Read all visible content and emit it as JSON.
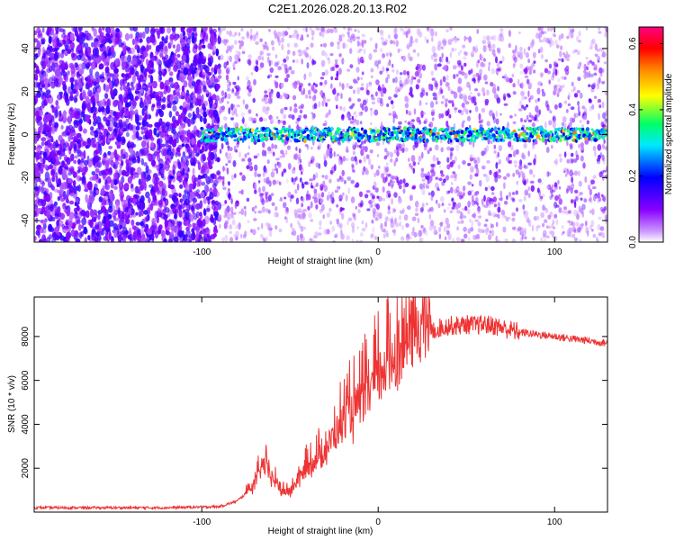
{
  "title": "C2E1.2026.028.20.13.R02",
  "chart_data": [
    {
      "type": "heatmap",
      "xlabel": "Height of straight line (km)",
      "ylabel": "Frequency (Hz)",
      "xlim": [
        -195,
        130
      ],
      "ylim": [
        -50,
        50
      ],
      "x_ticks": [
        -100,
        0,
        100
      ],
      "y_ticks": [
        -40,
        -20,
        0,
        20,
        40
      ],
      "colorbar": {
        "label": "Normalized spectral amplitude",
        "range": [
          0.0,
          0.65
        ],
        "ticks": [
          "0.0",
          "0.2",
          "0.4",
          "0.6"
        ],
        "colormap": [
          "#ffffff",
          "#8800ff",
          "#0000ff",
          "#00e8ff",
          "#00ff66",
          "#ffff00",
          "#ff8800",
          "#ff0000",
          "#ff0080"
        ]
      },
      "features": {
        "noise_fill_x_range": [
          -195,
          -90
        ],
        "sparse_noise_x_range": [
          -90,
          130
        ],
        "central_line_frequency": 0,
        "central_line_x_range": [
          -100,
          130
        ],
        "central_line_typical_amplitude": 0.28,
        "central_line_peak_amplitude": 0.55
      }
    },
    {
      "type": "line",
      "xlabel": "Height of straight line (km)",
      "ylabel": "SNR (10 * v/v)",
      "xlim": [
        -195,
        130
      ],
      "ylim": [
        0,
        9800
      ],
      "x_ticks": [
        -100,
        0,
        100
      ],
      "y_ticks": [
        2000,
        4000,
        6000,
        8000
      ],
      "color": "#ee3333",
      "series": [
        {
          "envelope_x": [
            -195,
            -120,
            -90,
            -80,
            -70,
            -65,
            -60,
            -55,
            -50,
            -45,
            -40,
            -35,
            -30,
            -25,
            -20,
            -15,
            -10,
            -5,
            0,
            5,
            10,
            15,
            20,
            25,
            30,
            35,
            40,
            45,
            50,
            55,
            60,
            65,
            70,
            75,
            80,
            90,
            100,
            110,
            120,
            130
          ],
          "envelope_y": [
            200,
            200,
            250,
            500,
            1200,
            2000,
            1400,
            900,
            800,
            1400,
            1900,
            2200,
            2600,
            3200,
            3800,
            4200,
            4600,
            5000,
            5600,
            6100,
            6600,
            7100,
            7500,
            7900,
            8200,
            8400,
            8500,
            8500,
            8550,
            8500,
            8550,
            8500,
            8400,
            8300,
            8200,
            8100,
            8000,
            7900,
            7800,
            7700
          ]
        }
      ]
    }
  ]
}
